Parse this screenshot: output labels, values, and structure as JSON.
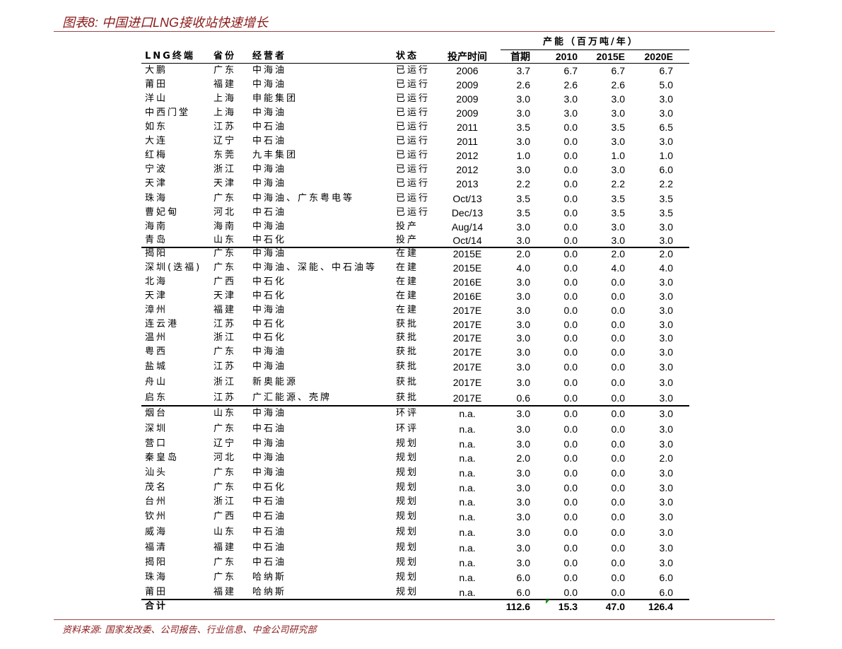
{
  "title": "图表8: 中国进口LNG接收站快速增长",
  "source": "资料来源: 国家发改委、公司报告、行业信息、中金公司研究部",
  "table": {
    "group_header": "产能（百万吨/年）",
    "headers": [
      "LNG终端",
      "省份",
      "经营者",
      "状态",
      "投产时间",
      "首期",
      "2010",
      "2015E",
      "2020E"
    ],
    "rows": [
      [
        "大鹏",
        "广东",
        "中海油",
        "已运行",
        "2006",
        "3.7",
        "6.7",
        "6.7",
        "6.7"
      ],
      [
        "莆田",
        "福建",
        "中海油",
        "已运行",
        "2009",
        "2.6",
        "2.6",
        "2.6",
        "5.0"
      ],
      [
        "洋山",
        "上海",
        "申能集团",
        "已运行",
        "2009",
        "3.0",
        "3.0",
        "3.0",
        "3.0"
      ],
      [
        "中西门堂",
        "上海",
        "中海油",
        "已运行",
        "2009",
        "3.0",
        "3.0",
        "3.0",
        "3.0"
      ],
      [
        "如东",
        "江苏",
        "中石油",
        "已运行",
        "2011",
        "3.5",
        "0.0",
        "3.5",
        "6.5"
      ],
      [
        "大连",
        "辽宁",
        "中石油",
        "已运行",
        "2011",
        "3.0",
        "0.0",
        "3.0",
        "3.0"
      ],
      [
        "红梅",
        "东莞",
        "九丰集团",
        "已运行",
        "2012",
        "1.0",
        "0.0",
        "1.0",
        "1.0"
      ],
      [
        "宁波",
        "浙江",
        "中海油",
        "已运行",
        "2012",
        "3.0",
        "0.0",
        "3.0",
        "6.0"
      ],
      [
        "天津",
        "天津",
        "中海油",
        "已运行",
        "2013",
        "2.2",
        "0.0",
        "2.2",
        "2.2"
      ],
      [
        "珠海",
        "广东",
        "中海油、广东粤电等",
        "已运行",
        "Oct/13",
        "3.5",
        "0.0",
        "3.5",
        "3.5"
      ],
      [
        "曹妃甸",
        "河北",
        "中石油",
        "已运行",
        "Dec/13",
        "3.5",
        "0.0",
        "3.5",
        "3.5"
      ],
      [
        "海南",
        "海南",
        "中海油",
        "投产",
        "Aug/14",
        "3.0",
        "0.0",
        "3.0",
        "3.0"
      ],
      [
        "青岛",
        "山东",
        "中石化",
        "投产",
        "Oct/14",
        "3.0",
        "0.0",
        "3.0",
        "3.0"
      ],
      [
        "揭阳",
        "广东",
        "中海油",
        "在建",
        "2015E",
        "2.0",
        "0.0",
        "2.0",
        "2.0"
      ],
      [
        "深圳(迭福)",
        "广东",
        "中海油、深能、中石油等",
        "在建",
        "2015E",
        "4.0",
        "0.0",
        "4.0",
        "4.0"
      ],
      [
        "北海",
        "广西",
        "中石化",
        "在建",
        "2016E",
        "3.0",
        "0.0",
        "0.0",
        "3.0"
      ],
      [
        "天津",
        "天津",
        "中石化",
        "在建",
        "2016E",
        "3.0",
        "0.0",
        "0.0",
        "3.0"
      ],
      [
        "漳州",
        "福建",
        "中海油",
        "在建",
        "2017E",
        "3.0",
        "0.0",
        "0.0",
        "3.0"
      ],
      [
        "连云港",
        "江苏",
        "中石化",
        "获批",
        "2017E",
        "3.0",
        "0.0",
        "0.0",
        "3.0"
      ],
      [
        "温州",
        "浙江",
        "中石化",
        "获批",
        "2017E",
        "3.0",
        "0.0",
        "0.0",
        "3.0"
      ],
      [
        "粤西",
        "广东",
        "中海油",
        "获批",
        "2017E",
        "3.0",
        "0.0",
        "0.0",
        "3.0"
      ],
      [
        "盐城",
        "江苏",
        "中海油",
        "获批",
        "2017E",
        "3.0",
        "0.0",
        "0.0",
        "3.0"
      ],
      [
        "舟山",
        "浙江",
        "新奥能源",
        "获批",
        "2017E",
        "3.0",
        "0.0",
        "0.0",
        "3.0"
      ],
      [
        "启东",
        "江苏",
        "广汇能源、壳牌",
        "获批",
        "2017E",
        "0.6",
        "0.0",
        "0.0",
        "3.0"
      ],
      [
        "烟台",
        "山东",
        "中海油",
        "环评",
        "n.a.",
        "3.0",
        "0.0",
        "0.0",
        "3.0"
      ],
      [
        "深圳",
        "广东",
        "中石油",
        "环评",
        "n.a.",
        "3.0",
        "0.0",
        "0.0",
        "3.0"
      ],
      [
        "营口",
        "辽宁",
        "中海油",
        "规划",
        "n.a.",
        "3.0",
        "0.0",
        "0.0",
        "3.0"
      ],
      [
        "秦皇岛",
        "河北",
        "中海油",
        "规划",
        "n.a.",
        "2.0",
        "0.0",
        "0.0",
        "2.0"
      ],
      [
        "汕头",
        "广东",
        "中海油",
        "规划",
        "n.a.",
        "3.0",
        "0.0",
        "0.0",
        "3.0"
      ],
      [
        "茂名",
        "广东",
        "中石化",
        "规划",
        "n.a.",
        "3.0",
        "0.0",
        "0.0",
        "3.0"
      ],
      [
        "台州",
        "浙江",
        "中石油",
        "规划",
        "n.a.",
        "3.0",
        "0.0",
        "0.0",
        "3.0"
      ],
      [
        "钦州",
        "广西",
        "中石油",
        "规划",
        "n.a.",
        "3.0",
        "0.0",
        "0.0",
        "3.0"
      ],
      [
        "威海",
        "山东",
        "中石油",
        "规划",
        "n.a.",
        "3.0",
        "0.0",
        "0.0",
        "3.0"
      ],
      [
        "福清",
        "福建",
        "中石油",
        "规划",
        "n.a.",
        "3.0",
        "0.0",
        "0.0",
        "3.0"
      ],
      [
        "揭阳",
        "广东",
        "中石油",
        "规划",
        "n.a.",
        "3.0",
        "0.0",
        "0.0",
        "3.0"
      ],
      [
        "珠海",
        "广东",
        "哈纳斯",
        "规划",
        "n.a.",
        "6.0",
        "0.0",
        "0.0",
        "6.0"
      ],
      [
        "莆田",
        "福建",
        "哈纳斯",
        "规划",
        "n.a.",
        "6.0",
        "0.0",
        "0.0",
        "6.0"
      ]
    ],
    "total": {
      "label": "合计",
      "values": [
        "112.6",
        "15.3",
        "47.0",
        "126.4"
      ]
    }
  }
}
